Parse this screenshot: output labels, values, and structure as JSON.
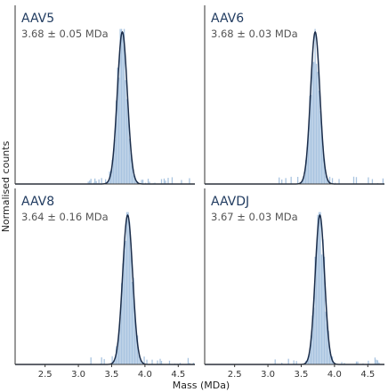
{
  "chart_data": {
    "type": "bar",
    "xlabel": "Mass (MDa)",
    "ylabel": "Normalised counts",
    "xlim": [
      2.05,
      4.75
    ],
    "xticks": [
      "2.5",
      "3.0",
      "3.5",
      "4.0",
      "4.5"
    ],
    "colors": {
      "histogram": "#a9c4e0",
      "fit": "#1b2d4a",
      "axis": "#333333",
      "title": "#1f3a5f"
    },
    "panels": [
      {
        "name": "AAV5",
        "value": "3.68 ± 0.05 MDa",
        "peak": 3.66,
        "sigma": 0.075
      },
      {
        "name": "AAV6",
        "value": "3.68 ± 0.03 MDa",
        "peak": 3.71,
        "sigma": 0.07
      },
      {
        "name": "AAV8",
        "value": "3.64 ± 0.16 MDa",
        "peak": 3.74,
        "sigma": 0.075
      },
      {
        "name": "AAVDJ",
        "value": "3.67 ± 0.03 MDa",
        "peak": 3.78,
        "sigma": 0.07
      }
    ]
  }
}
